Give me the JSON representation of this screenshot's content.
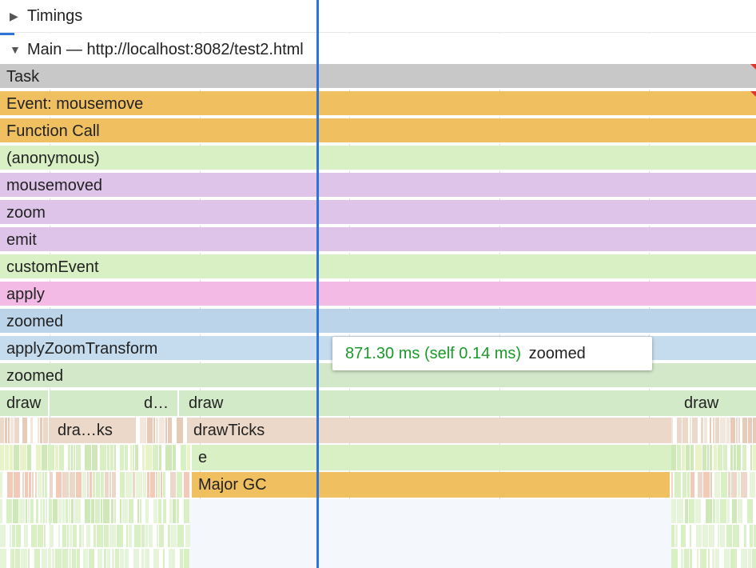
{
  "tracks": {
    "timings": {
      "label": "Timings",
      "expanded": false
    },
    "main": {
      "label": "Main — http://localhost:8082/test2.html",
      "expanded": true
    }
  },
  "flame_rows": [
    {
      "label": "Task",
      "color": "#c8c8c8"
    },
    {
      "label": "Event: mousemove",
      "color": "#f0c060"
    },
    {
      "label": "Function Call",
      "color": "#f0c060"
    },
    {
      "label": "(anonymous)",
      "color": "#d8f0c4"
    },
    {
      "label": "mousemoved",
      "color": "#dfc4ea"
    },
    {
      "label": "zoom",
      "color": "#dfc4ea"
    },
    {
      "label": "emit",
      "color": "#dfc4ea"
    },
    {
      "label": "customEvent",
      "color": "#d8f0c4"
    },
    {
      "label": "apply",
      "color": "#f2bae4"
    },
    {
      "label": "zoomed",
      "color": "#bcd4ea"
    },
    {
      "label": "applyZoomTransform",
      "color": "#c4dcee"
    },
    {
      "label": "zoomed",
      "color": "#d2e8c8"
    }
  ],
  "draw_row": [
    {
      "label": "draw"
    },
    {
      "label": "d…"
    },
    {
      "label": "draw"
    },
    {
      "label": "draw"
    }
  ],
  "ticks_row": [
    {
      "label": "dra…ks"
    },
    {
      "label": "drawTicks"
    }
  ],
  "e_row": {
    "label": "e"
  },
  "gc_row": {
    "label": "Major GC"
  },
  "tooltip": {
    "time": "871.30 ms (self 0.14 ms)",
    "name": "zoomed"
  },
  "colors": {
    "draw": "#d2eac8",
    "ticks": "#ecd8c8",
    "e": "#d8f0c4",
    "gc": "#f0c060",
    "cursor": "#2d74da"
  }
}
